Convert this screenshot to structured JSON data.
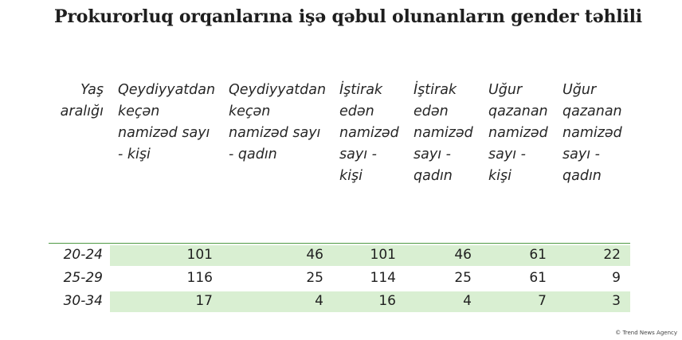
{
  "title": "Prokurorluq orqanlarına işə qəbul olunanların gender təhlili",
  "table": {
    "headers": [
      "Yaş aralığı",
      "Qeydiyyatdan keçən namizəd sayı - kişi",
      "Qeydiyyatdan keçən namizəd sayı - qadın",
      "İştirak edən namizəd sayı - kişi",
      "İştirak edən namizəd sayı - qadın",
      "Uğur qazanan namizəd sayı - kişi",
      "Uğur qazanan namizəd sayı - qadın"
    ],
    "rows": [
      [
        "20-24",
        "101",
        "46",
        "101",
        "46",
        "61",
        "22"
      ],
      [
        "25-29",
        "116",
        "25",
        "114",
        "25",
        "61",
        "9"
      ],
      [
        "30-34",
        "17",
        "4",
        "16",
        "4",
        "7",
        "3"
      ]
    ],
    "row_shading": [
      "shaded",
      "plain",
      "shaded"
    ],
    "colors": {
      "shade": "#d9efd2",
      "rule": "#4f9a44"
    }
  },
  "footer": "© Trend News Agency"
}
